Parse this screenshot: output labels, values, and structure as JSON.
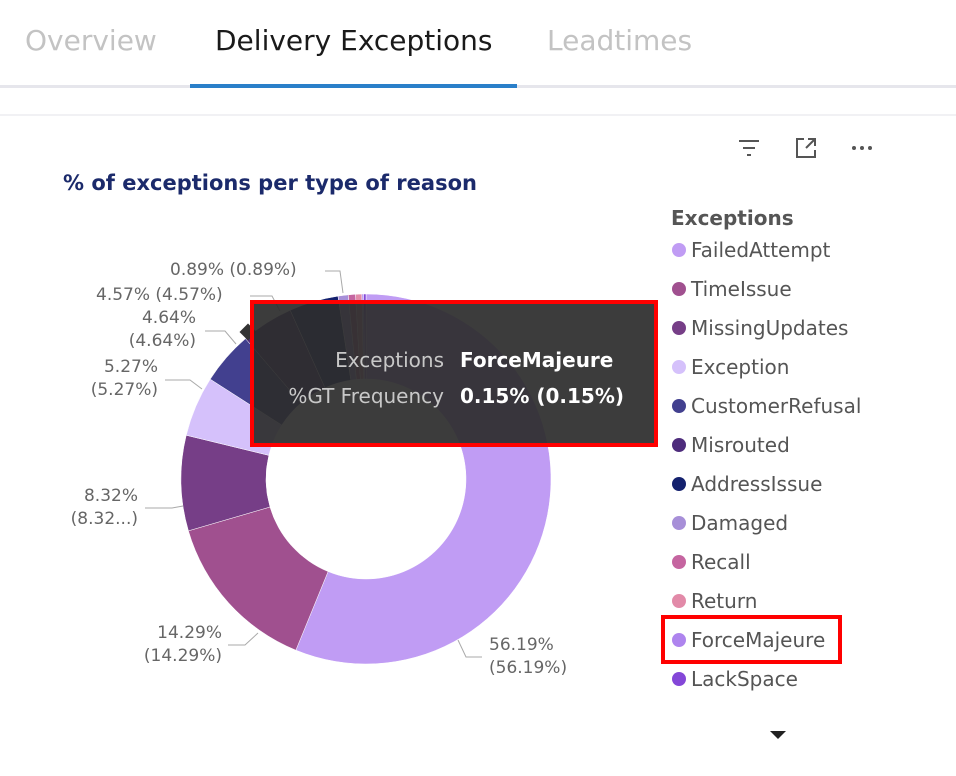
{
  "tabs": [
    {
      "label": "Overview"
    },
    {
      "label": "Delivery Exceptions"
    },
    {
      "label": "Leadtimes"
    }
  ],
  "toolbar_icons": [
    "filter-icon",
    "focus-mode-icon",
    "more-options-icon"
  ],
  "chart_data": {
    "type": "pie",
    "donut": true,
    "title": "% of exceptions per type of reason",
    "legend_title": "Exceptions",
    "legend_position": "right",
    "categories": [
      "FailedAttempt",
      "TimeIssue",
      "MissingUpdates",
      "Exception",
      "CustomerRefusal",
      "Misrouted",
      "AddressIssue",
      "Damaged",
      "Recall",
      "Return",
      "ForceMajeure",
      "LackSpace"
    ],
    "values": [
      56.19,
      14.29,
      8.32,
      5.27,
      4.64,
      4.57,
      4.3,
      0.89,
      0.63,
      0.55,
      0.15,
      0.2
    ],
    "colors": [
      "#c09cf4",
      "#a0508f",
      "#763e87",
      "#d5c1fb",
      "#42408f",
      "#4e2c7c",
      "#14216e",
      "#a78fd8",
      "#c565a0",
      "#e28aa8",
      "#ae84ee",
      "#8447d8"
    ],
    "data_labels": [
      {
        "line1": "56.19%",
        "line2": "(56.19%)"
      },
      {
        "line1": "14.29%",
        "line2": "(14.29%)"
      },
      {
        "line1": "8.32%",
        "line2": "(8.32...)"
      },
      {
        "line1": "5.27%",
        "line2": "(5.27%)"
      },
      {
        "line1": "4.64%",
        "line2": "(4.64%)"
      },
      {
        "line1": "4.57% (4.57%)"
      },
      {
        "line1": "0.89% (0.89%)"
      }
    ]
  },
  "tooltip": {
    "rows": [
      {
        "key": "Exceptions",
        "value": "ForceMajeure"
      },
      {
        "key": "%GT Frequency",
        "value": "0.15% (0.15%)"
      }
    ]
  }
}
